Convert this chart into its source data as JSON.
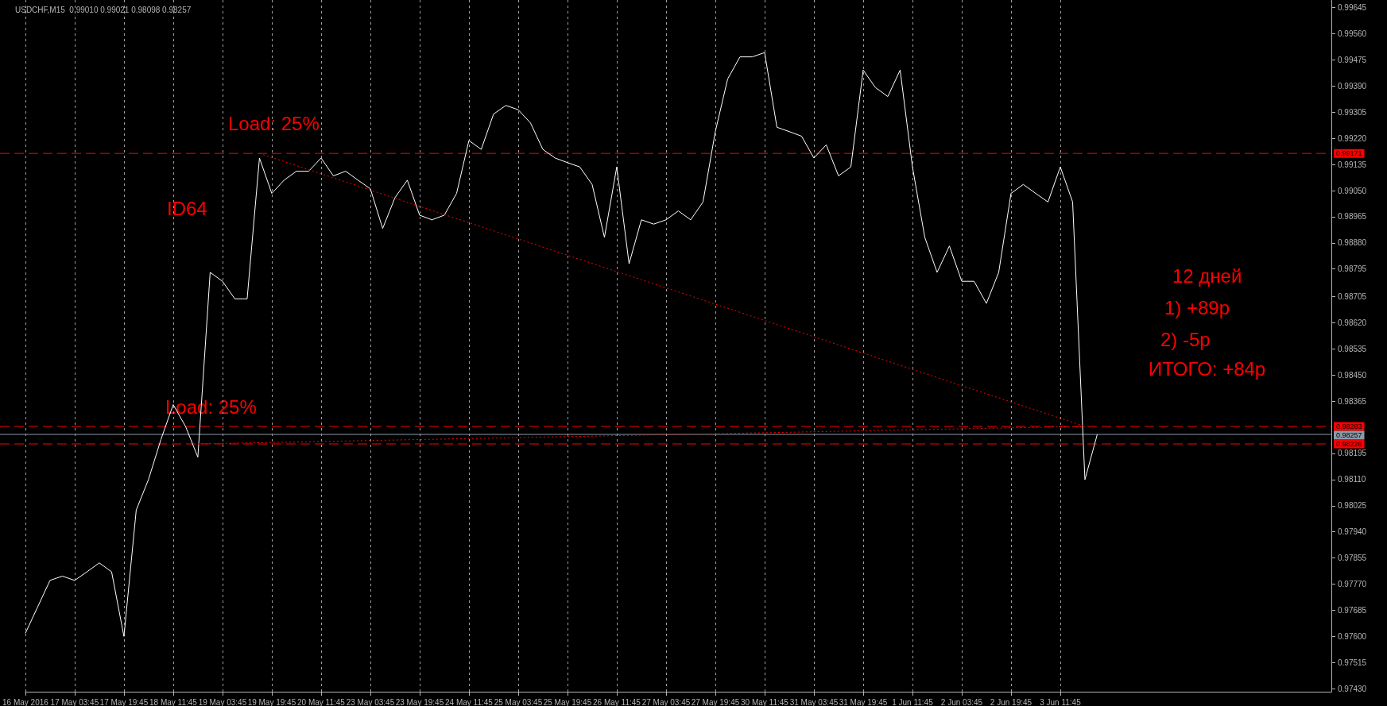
{
  "chart_data": {
    "type": "line",
    "title": "USDCHF,M15  0.99010 0.99021 0.98098 0.98257",
    "categories": [
      "16 May 2016",
      null,
      null,
      null,
      "17 May 03:45",
      null,
      null,
      null,
      "17 May 19:45",
      null,
      null,
      null,
      "18 May 11:45",
      null,
      null,
      null,
      "19 May 03:45",
      null,
      null,
      null,
      "19 May 19:45",
      null,
      null,
      null,
      "20 May 11:45",
      null,
      null,
      null,
      "23 May 03:45",
      null,
      null,
      null,
      "23 May 19:45",
      null,
      null,
      null,
      "24 May 11:45",
      null,
      null,
      null,
      "25 May 03:45",
      null,
      null,
      null,
      "25 May 19:45",
      null,
      null,
      null,
      "26 May 11:45",
      null,
      null,
      null,
      "27 May 03:45",
      null,
      null,
      null,
      "27 May 19:45",
      null,
      null,
      null,
      "30 May 11:45",
      null,
      null,
      null,
      "31 May 03:45",
      null,
      null,
      null,
      "31 May 19:45",
      null,
      null,
      null,
      "1 Jun 11:45",
      null,
      null,
      null,
      "2 Jun 03:45",
      null,
      null,
      null,
      "2 Jun 19:45",
      null,
      null,
      null,
      "3 Jun 11:45",
      null,
      null,
      null,
      null,
      null,
      null,
      null,
      null,
      null,
      null,
      null,
      null,
      null,
      null,
      null,
      null,
      null,
      null,
      null,
      null,
      null,
      null
    ],
    "series": [
      {
        "color": "#ffffff",
        "line_style": "solid",
        "values": [
          0.9761,
          0.97696,
          0.97782,
          0.97796,
          0.97782,
          0.9781,
          0.97839,
          0.9781,
          0.976,
          0.98011,
          0.98111,
          0.9824,
          0.98354,
          0.98283,
          0.98183,
          0.98784,
          0.98755,
          0.98698,
          0.98698,
          0.99156,
          0.99041,
          0.99084,
          0.99113,
          0.99113,
          0.99156,
          0.99098,
          0.99113,
          0.99084,
          0.99056,
          0.98927,
          0.99027,
          0.99084,
          0.9897,
          0.98955,
          0.9897,
          0.99041,
          0.99213,
          0.99184,
          0.99299,
          0.99327,
          0.99313,
          0.9927,
          0.99184,
          0.99156,
          0.99141,
          0.99127,
          0.9907,
          0.98898,
          0.99127,
          0.98812,
          0.98955,
          0.98941,
          0.98955,
          0.98984,
          0.98955,
          0.99013,
          0.99242,
          0.99413,
          0.99485,
          0.99485,
          0.99499,
          0.99256,
          0.99242,
          0.99227,
          0.99156,
          0.99199,
          0.99098,
          0.99127,
          0.99442,
          0.99385,
          0.99356,
          0.99442,
          0.99127,
          0.98898,
          0.98784,
          0.9887,
          0.98755,
          0.98755,
          0.98683,
          0.98784,
          0.99041,
          0.9907,
          0.99041,
          0.99013,
          0.99127,
          0.99013,
          0.9811,
          0.98257,
          null,
          null,
          null,
          null,
          null,
          null,
          null,
          null,
          null,
          null,
          null,
          null,
          null,
          null,
          null,
          null,
          null,
          null,
          null
        ]
      },
      {
        "color": "#ff0000",
        "line_style": "dotted",
        "values": [
          null,
          null,
          null,
          null,
          null,
          null,
          null,
          null,
          null,
          null,
          null,
          null,
          null,
          null,
          null,
          null,
          null,
          null,
          null,
          0.99171,
          null,
          null,
          null,
          null,
          null,
          null,
          null,
          null,
          null,
          null,
          null,
          null,
          null,
          null,
          null,
          null,
          null,
          null,
          null,
          null,
          null,
          null,
          null,
          null,
          null,
          null,
          null,
          null,
          null,
          null,
          null,
          null,
          null,
          null,
          null,
          null,
          null,
          null,
          null,
          null,
          null,
          null,
          null,
          null,
          null,
          null,
          null,
          null,
          null,
          null,
          null,
          null,
          null,
          null,
          null,
          null,
          null,
          null,
          null,
          null,
          null,
          null,
          null,
          null,
          null,
          null,
          0.98283,
          null,
          null,
          null,
          null,
          null,
          null,
          null,
          null,
          null,
          null,
          null,
          null,
          null,
          null,
          null,
          null,
          null,
          null,
          null,
          null
        ]
      },
      {
        "color": "#ff0000",
        "line_style": "dotted",
        "values": [
          null,
          null,
          null,
          null,
          null,
          null,
          null,
          null,
          null,
          null,
          null,
          null,
          null,
          null,
          0.98226,
          null,
          null,
          null,
          null,
          null,
          null,
          null,
          null,
          null,
          null,
          null,
          null,
          null,
          null,
          null,
          null,
          null,
          null,
          null,
          null,
          null,
          null,
          null,
          null,
          null,
          null,
          null,
          null,
          null,
          null,
          null,
          null,
          null,
          null,
          null,
          null,
          null,
          null,
          null,
          null,
          null,
          null,
          null,
          null,
          null,
          null,
          null,
          null,
          null,
          null,
          null,
          null,
          null,
          null,
          null,
          null,
          null,
          null,
          null,
          null,
          null,
          null,
          null,
          null,
          null,
          null,
          null,
          null,
          null,
          null,
          null,
          0.98283,
          null,
          null,
          null,
          null,
          null,
          null,
          null,
          null,
          null,
          null,
          null,
          null,
          null,
          null,
          null,
          null,
          null,
          null,
          null,
          null
        ]
      }
    ],
    "ylim": [
      0.9742,
      0.9967
    ],
    "yticks": [
      0.99645,
      {
        "value": 0.9956,
        "label": "0.99560"
      },
      0.99475,
      {
        "value": 0.9939,
        "label": "0.99390"
      },
      0.99305,
      {
        "value": 0.9922,
        "label": "0.99220"
      },
      0.99135,
      {
        "value": 0.9905,
        "label": "0.99050"
      },
      0.98965,
      {
        "value": 0.9888,
        "label": "0.98880"
      },
      0.98795,
      0.98705,
      {
        "value": 0.9862,
        "label": "0.98620"
      },
      0.98535,
      {
        "value": 0.9845,
        "label": "0.98450"
      },
      0.98365,
      0.98195,
      {
        "value": 0.9811,
        "label": "0.98110"
      },
      0.98025,
      {
        "value": 0.9794,
        "label": "0.97940"
      },
      0.97855,
      {
        "value": 0.9777,
        "label": "0.97770"
      },
      0.97685,
      {
        "value": 0.976,
        "label": "0.97600"
      },
      0.97515,
      {
        "value": 0.9743,
        "label": "0.97430"
      }
    ],
    "grid": "x",
    "marker": "none",
    "ref_lines": [
      {
        "axis": "y",
        "value": 0.99171,
        "label": "0.99171",
        "color": "#ff0000",
        "line_style": "dashed"
      },
      {
        "axis": "y",
        "value": 0.98283,
        "label": "0.98283",
        "color": "#ff0000",
        "line_style": "dashed"
      },
      {
        "axis": "y",
        "value": 0.98257,
        "label": "0.98257",
        "color": "#8c9aa8",
        "line_style": "solid"
      },
      {
        "axis": "y",
        "value": 0.98226,
        "label": "0.98226",
        "color": "#ff0000",
        "line_style": "dashed"
      }
    ],
    "annotations": [
      "Load: 25%",
      "Load: 25%",
      "ID64",
      "12 дней",
      "1) +89p",
      "2) -5p",
      "ИТОГО: +84p"
    ]
  }
}
